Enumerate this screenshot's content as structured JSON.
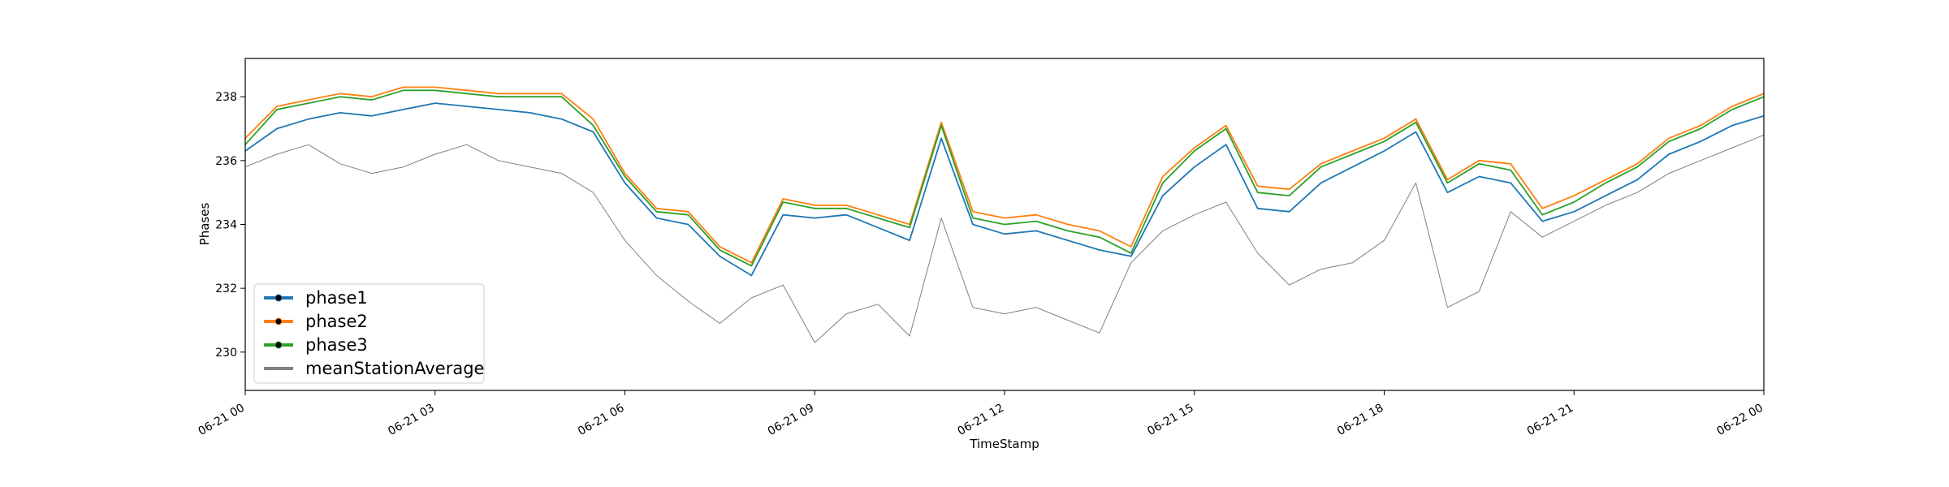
{
  "chart_data": {
    "type": "line",
    "title": "",
    "xlabel": "TimeStamp",
    "ylabel": "Phases",
    "xlim": [
      "06-21 00:00",
      "06-22 00:00"
    ],
    "ylim": [
      228.8,
      239.2
    ],
    "x_ticks": [
      "06-21 00",
      "06-21 03",
      "06-21 06",
      "06-21 09",
      "06-21 12",
      "06-21 15",
      "06-21 18",
      "06-21 21",
      "06-22 00"
    ],
    "y_ticks": [
      "230",
      "232",
      "234",
      "236",
      "238"
    ],
    "grid": false,
    "legend": "lower-left",
    "x": [
      "06-21 00:00",
      "06-21 00:30",
      "06-21 01:00",
      "06-21 01:30",
      "06-21 02:00",
      "06-21 02:30",
      "06-21 03:00",
      "06-21 03:30",
      "06-21 04:00",
      "06-21 04:30",
      "06-21 05:00",
      "06-21 05:30",
      "06-21 06:00",
      "06-21 06:30",
      "06-21 07:00",
      "06-21 07:30",
      "06-21 08:00",
      "06-21 08:30",
      "06-21 09:00",
      "06-21 09:30",
      "06-21 10:00",
      "06-21 10:30",
      "06-21 11:00",
      "06-21 11:30",
      "06-21 12:00",
      "06-21 12:30",
      "06-21 13:00",
      "06-21 13:30",
      "06-21 14:00",
      "06-21 14:30",
      "06-21 15:00",
      "06-21 15:30",
      "06-21 16:00",
      "06-21 16:30",
      "06-21 17:00",
      "06-21 17:30",
      "06-21 18:00",
      "06-21 18:30",
      "06-21 19:00",
      "06-21 19:30",
      "06-21 20:00",
      "06-21 20:30",
      "06-21 21:00",
      "06-21 21:30",
      "06-21 22:00",
      "06-21 22:30",
      "06-21 23:00",
      "06-21 23:30",
      "06-22 00:00"
    ],
    "series": [
      {
        "name": "phase1",
        "color": "#1f77b4",
        "marker": "dot",
        "values": [
          236.3,
          237.0,
          237.3,
          237.5,
          237.4,
          237.6,
          237.8,
          237.7,
          237.6,
          237.5,
          237.3,
          236.9,
          235.3,
          234.2,
          234.0,
          233.0,
          232.4,
          234.3,
          234.2,
          234.3,
          233.9,
          233.5,
          236.7,
          234.0,
          233.7,
          233.8,
          233.5,
          233.2,
          233.0,
          234.9,
          235.8,
          236.5,
          234.5,
          234.4,
          235.3,
          235.8,
          236.3,
          236.9,
          235.0,
          235.5,
          235.3,
          234.1,
          234.4,
          234.9,
          235.4,
          236.2,
          236.6,
          237.1,
          237.4
        ]
      },
      {
        "name": "phase2",
        "color": "#ff7f0e",
        "marker": "dot",
        "values": [
          236.7,
          237.7,
          237.9,
          238.1,
          238.0,
          238.3,
          238.3,
          238.2,
          238.1,
          238.1,
          238.1,
          237.3,
          235.6,
          234.5,
          234.4,
          233.3,
          232.8,
          234.8,
          234.6,
          234.6,
          234.3,
          234.0,
          237.2,
          234.4,
          234.2,
          234.3,
          234.0,
          233.8,
          233.3,
          235.5,
          236.4,
          237.1,
          235.2,
          235.1,
          235.9,
          236.3,
          236.7,
          237.3,
          235.4,
          236.0,
          235.9,
          234.5,
          234.9,
          235.4,
          235.9,
          236.7,
          237.1,
          237.7,
          238.1
        ]
      },
      {
        "name": "phase3",
        "color": "#2ca02c",
        "marker": "dot",
        "values": [
          236.5,
          237.6,
          237.8,
          238.0,
          237.9,
          238.2,
          238.2,
          238.1,
          238.0,
          238.0,
          238.0,
          237.1,
          235.5,
          234.4,
          234.3,
          233.2,
          232.7,
          234.7,
          234.5,
          234.5,
          234.2,
          233.9,
          237.1,
          234.2,
          234.0,
          234.1,
          233.8,
          233.6,
          233.1,
          235.3,
          236.3,
          237.0,
          235.0,
          234.9,
          235.8,
          236.2,
          236.6,
          237.2,
          235.3,
          235.9,
          235.7,
          234.3,
          234.7,
          235.3,
          235.8,
          236.6,
          237.0,
          237.6,
          238.0
        ]
      },
      {
        "name": "meanStationAverage",
        "color": "#808080",
        "marker": "none",
        "values": [
          235.8,
          236.2,
          236.5,
          235.9,
          235.6,
          235.8,
          236.2,
          236.5,
          236.0,
          235.8,
          235.6,
          235.0,
          233.5,
          232.4,
          231.6,
          230.9,
          231.7,
          232.1,
          230.3,
          231.2,
          231.5,
          230.5,
          234.2,
          231.4,
          231.2,
          231.4,
          231.0,
          230.6,
          232.8,
          233.8,
          234.3,
          234.7,
          233.1,
          232.1,
          232.6,
          232.8,
          233.5,
          235.3,
          231.4,
          231.9,
          234.4,
          233.6,
          234.1,
          234.6,
          235.0,
          235.6,
          236.0,
          236.4,
          236.8
        ]
      }
    ]
  }
}
